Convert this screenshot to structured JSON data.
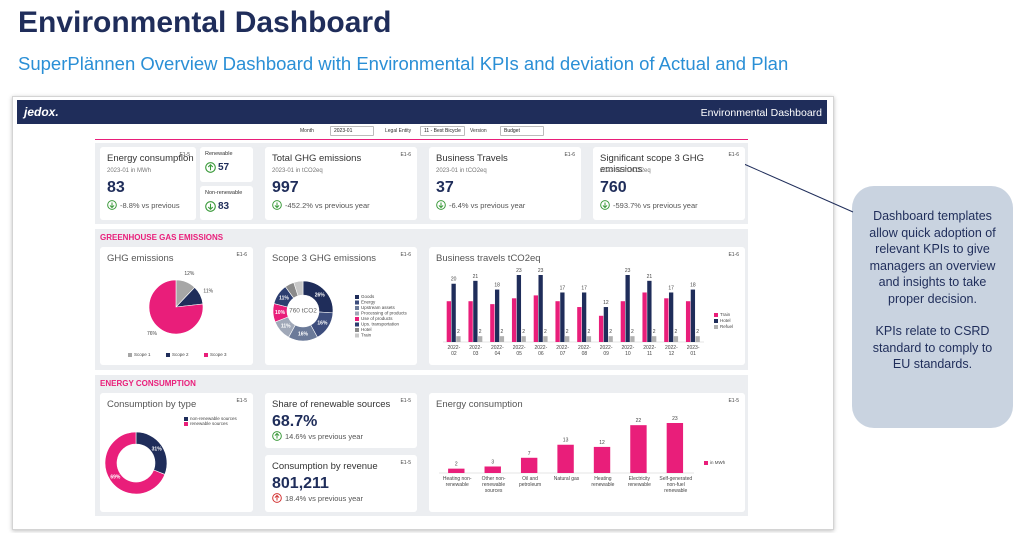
{
  "header": {
    "title": "Environmental Dashboard",
    "subtitle": "SuperPlännen Overview Dashboard with Environmental KPIs and deviation of Actual and Plan"
  },
  "callout": {
    "paragraphs": [
      "Dashboard templates allow quick adoption of relevant KPIs to give managers an overview and insights to take proper decision.",
      "KPIs relate to CSRD standard to comply to EU standards."
    ]
  },
  "app": {
    "logo": "jedox.",
    "title": "Environmental Dashboard",
    "filters": [
      {
        "label": "Month",
        "value": "2023-01"
      },
      {
        "label": "Legal Entity",
        "value": "11 - Best Bicycle"
      },
      {
        "label": "Version",
        "value": "Budget"
      }
    ]
  },
  "kpis": [
    {
      "title": "Energy consumption",
      "subtitle": "2023-01 in MWh",
      "value": 83,
      "delta": "-8.8% vs previous",
      "tag": "E1-5",
      "trend": "down",
      "status": "good"
    },
    {
      "title": "Renewable",
      "value": 57,
      "trend": "up",
      "status": "good"
    },
    {
      "title": "Non-renewable",
      "value": 83,
      "trend": "down",
      "status": "good"
    },
    {
      "title": "Total GHG emissions",
      "subtitle": "2023-01 in tCO2eq",
      "value": 997,
      "delta": "-452.2% vs previous year",
      "tag": "E1-6",
      "trend": "down",
      "status": "good"
    },
    {
      "title": "Business Travels",
      "subtitle": "2023-01 in tCO2eq",
      "value": 37,
      "delta": "-6.4% vs previous year",
      "tag": "E1-6",
      "trend": "down",
      "status": "good"
    },
    {
      "title": "Significant scope 3 GHG emissions",
      "subtitle": "2023-01 in tCO2eq",
      "value": 760,
      "delta": "-593.7% vs previous year",
      "tag": "E1-6",
      "trend": "down",
      "status": "good"
    },
    {
      "title": "Share of renewable sources",
      "value": "68.7%",
      "delta": "14.6% vs previous year",
      "tag": "E1-5",
      "trend": "up",
      "status": "good"
    },
    {
      "title": "Consumption by revenue",
      "value": "801,211",
      "delta": "18.4% vs previous year",
      "tag": "E1-5",
      "trend": "up",
      "status": "bad"
    }
  ],
  "sections": [
    {
      "title": "GREENHOUSE GAS EMISSIONS"
    },
    {
      "title": "ENERGY CONSUMPTION"
    }
  ],
  "charts": [
    {
      "type": "pie",
      "title": "GHG emissions",
      "tag": "E1-6",
      "categories": [
        "Scope 1",
        "Scope 2",
        "Scope 3"
      ],
      "values": [
        12,
        11,
        76
      ],
      "value_labels": [
        "12%",
        "11%",
        "76%"
      ],
      "colors": [
        "#a6a6a6",
        "#1f2d5a",
        "#e91e7a"
      ],
      "legend": "bottom"
    },
    {
      "type": "donut",
      "title": "Scope 3 GHG emissions",
      "tag": "E1-6",
      "center": "760 tCO2",
      "categories": [
        "Goods",
        "Energy",
        "Upstream assets",
        "Processing of products",
        "Use of products",
        "Ups. transportation",
        "Hotel",
        "Train"
      ],
      "values": [
        26,
        16,
        16,
        11,
        10,
        11,
        5,
        5
      ],
      "value_labels": [
        "26%",
        "16%",
        "16%",
        "11%",
        "10%",
        "11%",
        "5%",
        "5%"
      ],
      "colors": [
        "#1f2d5a",
        "#3d4d7d",
        "#6b7a99",
        "#a0a8b8",
        "#e91e7a",
        "#2c3e70",
        "#8a8a8a",
        "#c8c8c8"
      ],
      "legend": "right"
    },
    {
      "type": "bar",
      "title": "Business travels tCO2eq",
      "tag": "E1-6",
      "categories": [
        "2022-02",
        "2022-03",
        "2022-04",
        "2022-05",
        "2022-06",
        "2022-07",
        "2022-08",
        "2022-09",
        "2022-10",
        "2022-11",
        "2022-12",
        "2023-01"
      ],
      "series": [
        {
          "name": "Train",
          "color": "#e91e7a",
          "values": [
            14,
            14,
            13,
            15,
            16,
            14,
            12,
            9,
            14,
            17,
            15,
            14
          ],
          "labels": false
        },
        {
          "name": "Hotel",
          "color": "#1f2d5a",
          "values": [
            20,
            21,
            18,
            23,
            23,
            17,
            17,
            12,
            23,
            21,
            17,
            18
          ],
          "labels": true
        },
        {
          "name": "Refuel",
          "color": "#b0b0b0",
          "values": [
            2,
            2,
            2,
            2,
            2,
            2,
            2,
            2,
            2,
            2,
            2,
            2
          ],
          "labels": true
        }
      ],
      "legend": "right"
    },
    {
      "type": "donut",
      "title": "Consumption by type",
      "tag": "E1-5",
      "categories": [
        "non-renewable sources",
        "renewable sources"
      ],
      "values": [
        31,
        69
      ],
      "value_labels": [
        "31%",
        "69%"
      ],
      "colors": [
        "#1f2d5a",
        "#e91e7a"
      ],
      "legend": "top-right"
    },
    {
      "type": "bar",
      "title": "Energy consumption",
      "tag": "E1-5",
      "categories": [
        "Heating non-renewable",
        "Other non-renewable sources",
        "Oil and petroleum",
        "Natural gas",
        "Heating renewable",
        "Electricity renewable",
        "Self-generated non-fuel renewable"
      ],
      "series": [
        {
          "name": "in MWh",
          "color": "#e91e7a",
          "values": [
            2,
            3,
            7,
            13,
            12,
            22,
            23
          ],
          "labels": true
        }
      ],
      "legend": "right"
    }
  ]
}
